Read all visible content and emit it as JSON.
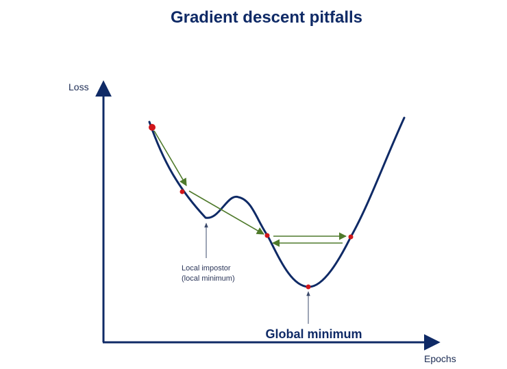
{
  "title": "Gradient descent pitfalls",
  "axes": {
    "y_label": "Loss",
    "x_label": "Epochs"
  },
  "annotations": {
    "local_minimum_line1": "Local impostor",
    "local_minimum_line2": "(local minimum)",
    "global_minimum": "Global minimum"
  },
  "colors": {
    "curve": "#0f2a66",
    "axis": "#0f2a66",
    "step_arrow": "#4f7a2b",
    "point": "#d0161b"
  }
}
